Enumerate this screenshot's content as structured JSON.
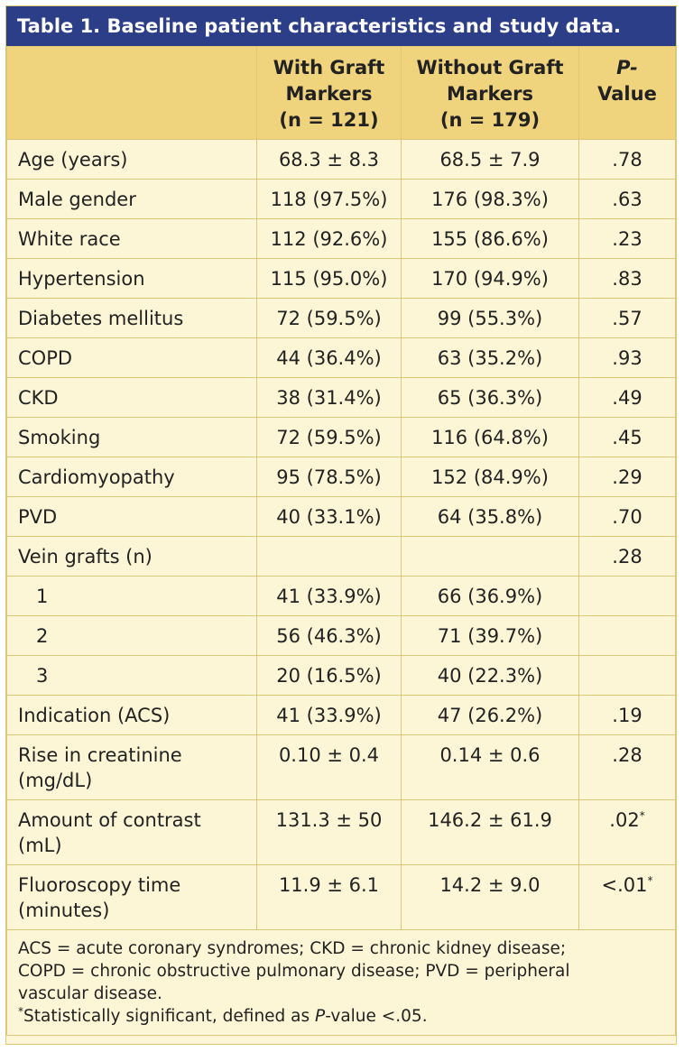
{
  "title": "Table 1. Baseline patient characteristics and study data.",
  "header": {
    "col1": "",
    "col2_line1": "With Graft",
    "col2_line2": "Markers",
    "col2_line3": "(n = 121)",
    "col3_line1": "Without Graft",
    "col3_line2": "Markers",
    "col3_line3": "(n = 179)",
    "col4_line1": "P-",
    "col4_line2": "Value"
  },
  "rows": [
    {
      "label": "Age (years)",
      "with": "68.3 ± 8.3",
      "without": "68.5 ± 7.9",
      "p": ".78"
    },
    {
      "label": "Male gender",
      "with": "118 (97.5%)",
      "without": "176 (98.3%)",
      "p": ".63"
    },
    {
      "label": "White race",
      "with": "112 (92.6%)",
      "without": "155 (86.6%)",
      "p": ".23"
    },
    {
      "label": "Hypertension",
      "with": "115 (95.0%)",
      "without": "170 (94.9%)",
      "p": ".83"
    },
    {
      "label": "Diabetes mellitus",
      "with": "72 (59.5%)",
      "without": "99 (55.3%)",
      "p": ".57"
    },
    {
      "label": "COPD",
      "with": "44 (36.4%)",
      "without": "63 (35.2%)",
      "p": ".93"
    },
    {
      "label": "CKD",
      "with": "38 (31.4%)",
      "without": "65 (36.3%)",
      "p": ".49"
    },
    {
      "label": "Smoking",
      "with": "72 (59.5%)",
      "without": "116 (64.8%)",
      "p": ".45"
    },
    {
      "label": "Cardiomyopathy",
      "with": "95 (78.5%)",
      "without": "152 (84.9%)",
      "p": ".29"
    },
    {
      "label": "PVD",
      "with": "40 (33.1%)",
      "without": "64 (35.8%)",
      "p": ".70"
    },
    {
      "label": "Vein grafts (n)",
      "with": "",
      "without": "",
      "p": ".28"
    },
    {
      "label": "1",
      "with": "41 (33.9%)",
      "without": "66 (36.9%)",
      "p": ""
    },
    {
      "label": "2",
      "with": "56 (46.3%)",
      "without": "71 (39.7%)",
      "p": ""
    },
    {
      "label": "3",
      "with": "20 (16.5%)",
      "without": "40 (22.3%)",
      "p": ""
    },
    {
      "label": "Indication (ACS)",
      "with": "41 (33.9%)",
      "without": "47 (26.2%)",
      "p": ".19"
    },
    {
      "label1": "Rise in creatinine",
      "label2": "(mg/dL)",
      "with": "0.10 ± 0.4",
      "without": "0.14 ± 0.6",
      "p": ".28"
    },
    {
      "label1": "Amount of contrast",
      "label2": "(mL)",
      "with": "131.3 ± 50",
      "without": "146.2 ± 61.9",
      "p": ".02",
      "p_mark": "*"
    },
    {
      "label1": "Fluoroscopy time",
      "label2": "(minutes)",
      "with": "11.9 ± 6.1",
      "without": "14.2 ± 9.0",
      "p": "<.01",
      "p_mark": "*"
    }
  ],
  "footnote": {
    "line1": "ACS = acute coronary syndromes; CKD = chronic kidney disease;",
    "line2": "COPD = chronic obstructive pulmonary disease; PVD = peripheral",
    "line3": "vascular disease.",
    "sig_mark": "*",
    "sig_pre": "Statistically significant, defined as ",
    "sig_p": "P",
    "sig_post": "-value <.05."
  },
  "colors": {
    "title_bg": "#2c3e87",
    "header_bg": "#f0d47d",
    "body_bg": "#fdf6d6",
    "border": "#e0c777"
  }
}
